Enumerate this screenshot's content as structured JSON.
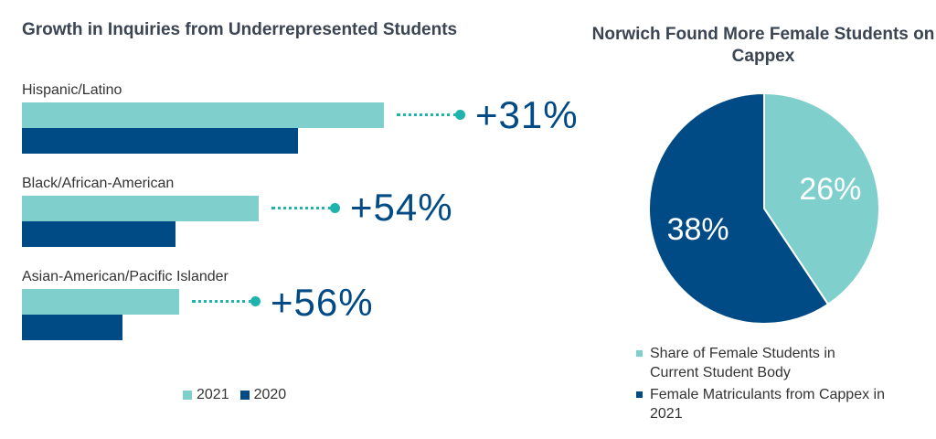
{
  "chart_data": [
    {
      "type": "bar",
      "orientation": "horizontal",
      "title": "Growth in Inquiries from Underrepresented Students",
      "categories": [
        "Hispanic/Latino",
        "Black/African-American",
        "Asian-American/Pacific Islander"
      ],
      "series": [
        {
          "name": "2021",
          "values": [
            131,
            154,
            156
          ],
          "color": "#7fcfcd"
        },
        {
          "name": "2020",
          "values": [
            100,
            100,
            100
          ],
          "color": "#004a85"
        }
      ],
      "annotations": [
        "+31%",
        "+54%",
        "+56%"
      ],
      "legend": "bottom",
      "grid": false
    },
    {
      "type": "pie",
      "title": "Norwich Found More Female Students on Cappex",
      "labels": [
        "Share of Female Students in Current Student Body",
        "Female Matriculants from Cappex in 2021"
      ],
      "values": [
        26,
        38
      ],
      "value_labels": [
        "26%",
        "38%"
      ],
      "colors": [
        "#7fcfcd",
        "#004a85"
      ],
      "legend": "bottom"
    }
  ]
}
